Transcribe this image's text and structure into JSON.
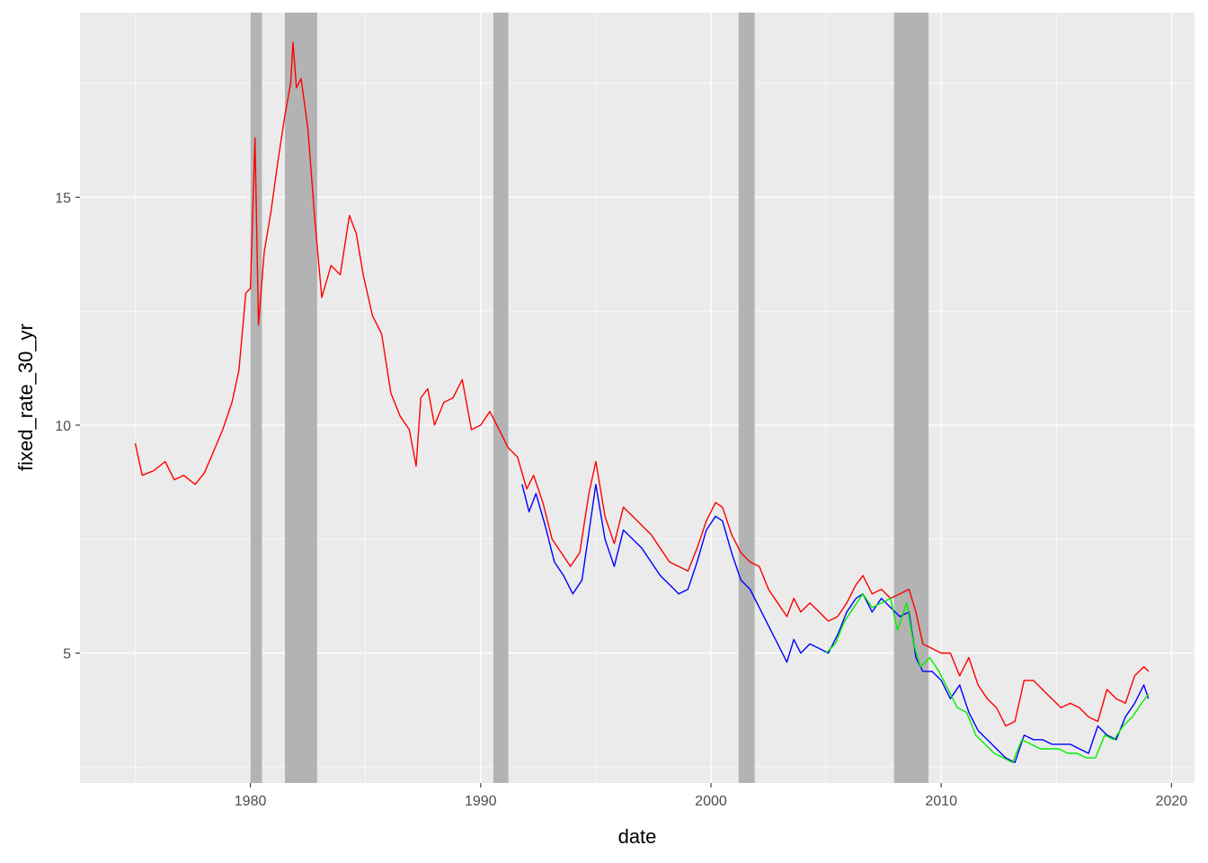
{
  "chart_data": {
    "type": "line",
    "title": "",
    "xlabel": "date",
    "ylabel": "fixed_rate_30_yr",
    "xlim": [
      1972.6,
      2021.0
    ],
    "ylim": [
      2.15,
      19.05
    ],
    "x_ticks": [
      1980,
      1990,
      2000,
      2010,
      2020
    ],
    "x_tick_labels": [
      "1980",
      "1990",
      "2000",
      "2010",
      "2020"
    ],
    "y_ticks": [
      5,
      10,
      15
    ],
    "y_tick_labels": [
      "5",
      "10",
      "15"
    ],
    "grid": true,
    "legend": "none",
    "recession_bands": [
      {
        "start": 1980.0,
        "end": 1980.5
      },
      {
        "start": 1981.5,
        "end": 1982.9
      },
      {
        "start": 1990.55,
        "end": 1991.2
      },
      {
        "start": 2001.2,
        "end": 2001.9
      },
      {
        "start": 2007.95,
        "end": 2009.45
      }
    ],
    "series": [
      {
        "color": "#ff0000",
        "x": [
          1975.0,
          1975.3,
          1975.8,
          1976.3,
          1976.7,
          1977.1,
          1977.6,
          1978.0,
          1978.3,
          1978.8,
          1979.2,
          1979.5,
          1979.8,
          1980.0,
          1980.2,
          1980.35,
          1980.6,
          1980.9,
          1981.2,
          1981.5,
          1981.75,
          1981.85,
          1982.0,
          1982.2,
          1982.5,
          1982.8,
          1983.1,
          1983.5,
          1983.9,
          1984.3,
          1984.6,
          1984.9,
          1985.3,
          1985.7,
          1986.1,
          1986.5,
          1986.9,
          1987.2,
          1987.4,
          1987.7,
          1988.0,
          1988.4,
          1988.8,
          1989.2,
          1989.6,
          1990.0,
          1990.4,
          1990.8,
          1991.2,
          1991.6,
          1992.0,
          1992.3,
          1992.7,
          1993.1,
          1993.5,
          1993.9,
          1994.3,
          1994.7,
          1995.0,
          1995.4,
          1995.8,
          1996.2,
          1996.6,
          1997.0,
          1997.4,
          1997.8,
          1998.2,
          1998.6,
          1999.0,
          1999.4,
          1999.8,
          2000.2,
          2000.5,
          2000.9,
          2001.3,
          2001.7,
          2002.1,
          2002.5,
          2002.9,
          2003.3,
          2003.6,
          2003.9,
          2004.3,
          2004.7,
          2005.1,
          2005.5,
          2005.9,
          2006.3,
          2006.6,
          2007.0,
          2007.4,
          2007.8,
          2008.2,
          2008.6,
          2008.9,
          2009.2,
          2009.6,
          2010.0,
          2010.4,
          2010.8,
          2011.2,
          2011.6,
          2012.0,
          2012.4,
          2012.8,
          2013.2,
          2013.6,
          2014.0,
          2014.4,
          2014.8,
          2015.2,
          2015.6,
          2016.0,
          2016.4,
          2016.8,
          2017.2,
          2017.6,
          2018.0,
          2018.4,
          2018.8,
          2019.0
        ],
        "y": [
          9.6,
          8.9,
          9.0,
          9.2,
          8.8,
          8.9,
          8.7,
          8.95,
          9.3,
          9.9,
          10.5,
          11.2,
          12.9,
          13.0,
          16.3,
          12.2,
          13.8,
          14.7,
          15.8,
          16.8,
          17.5,
          18.4,
          17.4,
          17.6,
          16.5,
          14.5,
          12.8,
          13.5,
          13.3,
          14.6,
          14.2,
          13.3,
          12.4,
          12.0,
          10.7,
          10.2,
          9.9,
          9.1,
          10.6,
          10.8,
          10.0,
          10.5,
          10.6,
          11.0,
          9.9,
          10.0,
          10.3,
          9.9,
          9.5,
          9.3,
          8.6,
          8.9,
          8.3,
          7.5,
          7.2,
          6.9,
          7.2,
          8.5,
          9.2,
          8.0,
          7.4,
          8.2,
          8.0,
          7.8,
          7.6,
          7.3,
          7.0,
          6.9,
          6.8,
          7.3,
          7.9,
          8.3,
          8.2,
          7.6,
          7.2,
          7.0,
          6.9,
          6.4,
          6.1,
          5.8,
          6.2,
          5.9,
          6.1,
          5.9,
          5.7,
          5.8,
          6.1,
          6.5,
          6.7,
          6.3,
          6.4,
          6.2,
          6.3,
          6.4,
          5.9,
          5.2,
          5.1,
          5.0,
          5.0,
          4.5,
          4.9,
          4.3,
          4.0,
          3.8,
          3.4,
          3.5,
          4.4,
          4.4,
          4.2,
          4.0,
          3.8,
          3.9,
          3.8,
          3.6,
          3.5,
          4.2,
          4.0,
          3.9,
          4.5,
          4.7,
          4.6
        ]
      },
      {
        "color": "#0000ff",
        "x": [
          1991.8,
          1992.1,
          1992.4,
          1992.8,
          1993.2,
          1993.6,
          1994.0,
          1994.4,
          1994.8,
          1995.0,
          1995.4,
          1995.8,
          1996.2,
          1996.6,
          1997.0,
          1997.4,
          1997.8,
          1998.2,
          1998.6,
          1999.0,
          1999.4,
          1999.8,
          2000.2,
          2000.5,
          2000.9,
          2001.3,
          2001.7,
          2002.1,
          2002.5,
          2002.9,
          2003.3,
          2003.6,
          2003.9,
          2004.3,
          2004.7,
          2005.1,
          2005.5,
          2005.9,
          2006.3,
          2006.6,
          2007.0,
          2007.4,
          2007.8,
          2008.2,
          2008.6,
          2008.9,
          2009.2,
          2009.6,
          2010.0,
          2010.4,
          2010.8,
          2011.2,
          2011.6,
          2012.0,
          2012.4,
          2012.8,
          2013.2,
          2013.6,
          2014.0,
          2014.4,
          2014.8,
          2015.2,
          2015.6,
          2016.0,
          2016.4,
          2016.8,
          2017.2,
          2017.6,
          2018.0,
          2018.4,
          2018.8,
          2019.0
        ],
        "y": [
          8.7,
          8.1,
          8.5,
          7.8,
          7.0,
          6.7,
          6.3,
          6.6,
          8.0,
          8.7,
          7.5,
          6.9,
          7.7,
          7.5,
          7.3,
          7.0,
          6.7,
          6.5,
          6.3,
          6.4,
          7.0,
          7.7,
          8.0,
          7.9,
          7.2,
          6.6,
          6.4,
          6.0,
          5.6,
          5.2,
          4.8,
          5.3,
          5.0,
          5.2,
          5.1,
          5.0,
          5.4,
          5.9,
          6.2,
          6.3,
          5.9,
          6.2,
          6.0,
          5.8,
          5.9,
          4.9,
          4.6,
          4.6,
          4.4,
          4.0,
          4.3,
          3.7,
          3.3,
          3.1,
          2.9,
          2.7,
          2.6,
          3.2,
          3.1,
          3.1,
          3.0,
          3.0,
          3.0,
          2.9,
          2.8,
          3.4,
          3.2,
          3.1,
          3.6,
          3.9,
          4.3,
          4.0
        ]
      },
      {
        "color": "#00ee00",
        "x": [
          2005.0,
          2005.4,
          2005.8,
          2006.2,
          2006.6,
          2007.0,
          2007.4,
          2007.8,
          2008.1,
          2008.5,
          2008.8,
          2009.1,
          2009.5,
          2009.9,
          2010.3,
          2010.7,
          2011.1,
          2011.5,
          2011.9,
          2012.3,
          2012.7,
          2013.1,
          2013.5,
          2013.9,
          2014.3,
          2014.7,
          2015.1,
          2015.5,
          2015.9,
          2016.3,
          2016.7,
          2017.1,
          2017.5,
          2017.9,
          2018.3,
          2018.7,
          2019.0
        ],
        "y": [
          5.0,
          5.2,
          5.7,
          6.0,
          6.3,
          6.0,
          6.1,
          6.2,
          5.5,
          6.1,
          5.2,
          4.7,
          4.9,
          4.6,
          4.2,
          3.8,
          3.7,
          3.2,
          3.0,
          2.8,
          2.7,
          2.6,
          3.1,
          3.0,
          2.9,
          2.9,
          2.9,
          2.8,
          2.8,
          2.7,
          2.7,
          3.2,
          3.1,
          3.4,
          3.6,
          3.9,
          4.1
        ]
      }
    ]
  }
}
